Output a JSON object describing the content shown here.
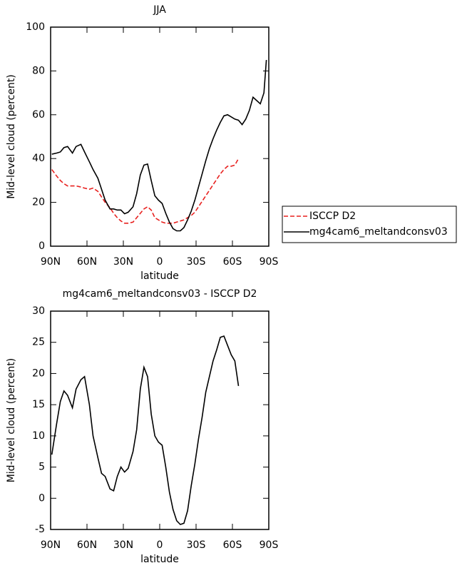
{
  "chart_data": [
    {
      "type": "line",
      "title": "JJA",
      "xlabel": "latitude",
      "ylabel": "Mid-level cloud (percent)",
      "x": [
        89,
        85,
        82,
        79,
        76,
        72,
        69,
        65,
        62,
        58,
        55,
        51,
        48,
        45,
        41,
        38,
        35,
        32,
        29,
        26,
        22,
        19,
        16,
        13,
        10,
        7,
        4,
        1,
        -2,
        -5,
        -8,
        -11,
        -14,
        -17,
        -20,
        -23,
        -26,
        -29,
        -32,
        -35,
        -38,
        -41,
        -44,
        -47,
        -50,
        -53,
        -56,
        -59,
        -62,
        -65,
        -68,
        -71,
        -74,
        -77,
        -80,
        -83,
        -86,
        -88
      ],
      "series": [
        {
          "name": "ISCCP D2",
          "color": "#e8211f",
          "dash": true,
          "values": [
            35,
            32,
            30,
            28.5,
            27.5,
            27.5,
            27.5,
            27,
            26.5,
            26,
            26.5,
            25,
            22.5,
            20,
            17.5,
            15,
            13,
            11.5,
            10.5,
            10.5,
            11,
            13,
            15,
            17,
            18,
            16.5,
            13,
            12,
            11,
            10.5,
            10.5,
            10.5,
            11,
            11.5,
            12,
            13,
            14,
            15.5,
            18,
            20.5,
            23,
            25.5,
            28,
            30.5,
            33,
            35,
            36.5,
            36.5,
            37,
            40,
            null,
            null,
            null,
            null,
            null,
            null,
            null,
            null
          ]
        },
        {
          "name": "mg4cam6_meltandconsv03",
          "color": "#000000",
          "dash": false,
          "values": [
            42,
            42.5,
            43,
            45,
            45.5,
            42.5,
            45.5,
            46.5,
            43,
            38.5,
            35,
            31,
            26,
            21,
            17,
            17,
            16.5,
            16.5,
            14.8,
            15.5,
            18,
            24,
            32.5,
            37,
            37.5,
            30,
            23,
            21,
            19.5,
            15,
            11,
            8,
            7,
            7,
            8.5,
            12,
            16,
            21,
            27,
            33,
            39,
            44.5,
            49,
            53,
            56.5,
            59.5,
            60,
            59,
            58,
            57.5,
            55.5,
            58,
            62,
            68,
            66.5,
            65,
            70,
            85
          ]
        }
      ],
      "xlim": [
        90,
        -90
      ],
      "xticks": [
        {
          "value": 90,
          "label": "90N"
        },
        {
          "value": 60,
          "label": "60N"
        },
        {
          "value": 30,
          "label": "30N"
        },
        0,
        {
          "value": -30,
          "label": "30S"
        },
        {
          "value": -60,
          "label": "60S"
        },
        {
          "value": -90,
          "label": "90S"
        }
      ],
      "ylim": [
        0,
        100
      ],
      "yticks": [
        0,
        20,
        40,
        60,
        80,
        100
      ],
      "legend": "right"
    },
    {
      "type": "line",
      "title": "mg4cam6_meltandconsv03 - ISCCP D2",
      "xlabel": "latitude",
      "ylabel": "Mid-level cloud (percent)",
      "x": [
        89,
        85,
        82,
        79,
        76,
        72,
        69,
        65,
        62,
        58,
        55,
        51,
        48,
        45,
        41,
        38,
        35,
        32,
        29,
        26,
        22,
        19,
        16,
        13,
        10,
        7,
        4,
        1,
        -2,
        -5,
        -8,
        -11,
        -14,
        -17,
        -20,
        -23,
        -26,
        -29,
        -32,
        -35,
        -38,
        -41,
        -44,
        -47,
        -50,
        -53,
        -56,
        -59,
        -62,
        -65
      ],
      "values": [
        7,
        12,
        15.5,
        17.2,
        16.5,
        14.5,
        17.5,
        19,
        19.5,
        15,
        10,
        6.5,
        4,
        3.5,
        1.5,
        1.2,
        3.5,
        5,
        4.2,
        4.8,
        7.5,
        11,
        17.5,
        21,
        19.5,
        13.5,
        10,
        9,
        8.5,
        5,
        1,
        -1.8,
        -3.6,
        -4.2,
        -4,
        -2,
        2,
        5.5,
        9.5,
        13,
        17,
        19.5,
        22,
        23.8,
        25.8,
        26,
        24.5,
        23,
        22,
        18
      ],
      "color": "#000000",
      "xlim": [
        90,
        -90
      ],
      "xticks": [
        {
          "value": 90,
          "label": "90N"
        },
        {
          "value": 60,
          "label": "60N"
        },
        {
          "value": 30,
          "label": "30N"
        },
        0,
        {
          "value": -30,
          "label": "30S"
        },
        {
          "value": -60,
          "label": "60S"
        },
        {
          "value": -90,
          "label": "90S"
        }
      ],
      "ylim": [
        -5,
        30
      ],
      "yticks": [
        -5,
        0,
        5,
        10,
        15,
        20,
        25,
        30
      ]
    }
  ]
}
